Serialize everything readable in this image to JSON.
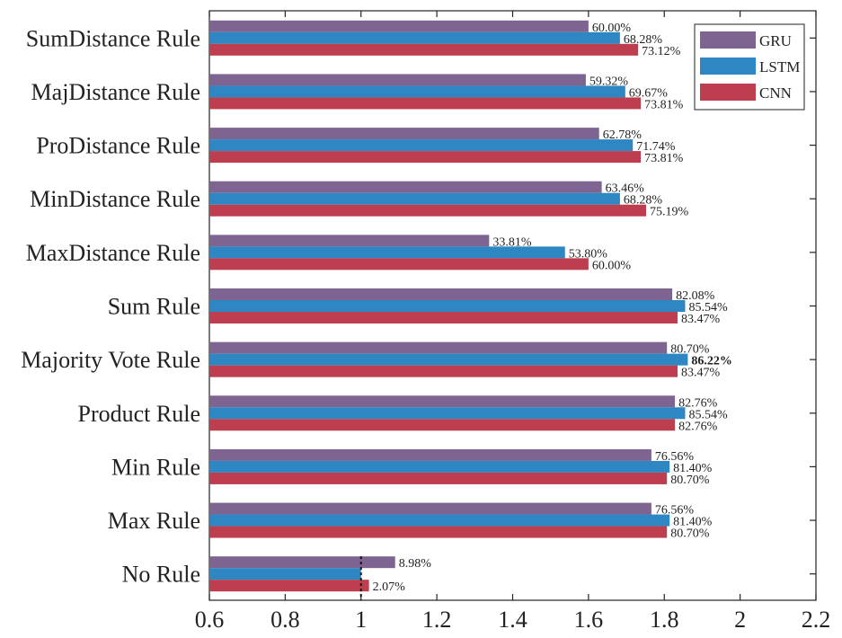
{
  "chart_data": {
    "type": "bar",
    "orientation": "horizontal",
    "title": "",
    "xlabel": "",
    "ylabel": "",
    "xlim": [
      0.6,
      2.2
    ],
    "xticks": [
      0.6,
      0.8,
      1,
      1.2,
      1.4,
      1.6,
      1.8,
      2,
      2.2
    ],
    "xtick_labels": [
      "0.6",
      "0.8",
      "1",
      "1.2",
      "1.4",
      "1.6",
      "1.8",
      "2",
      "2.2"
    ],
    "grid": false,
    "legend_position": "top-right",
    "reference_line": 1,
    "categories": [
      "SumDistance Rule",
      "MajDistance Rule",
      "ProDistance Rule",
      "MinDistance Rule",
      "MaxDistance Rule",
      "Sum Rule",
      "Majority Vote Rule",
      "Product Rule",
      "Min Rule",
      "Max Rule",
      "No Rule"
    ],
    "series": [
      {
        "name": "GRU",
        "color": "#7e6491",
        "values": [
          1.6,
          1.593,
          1.628,
          1.635,
          1.338,
          1.821,
          1.807,
          1.828,
          1.766,
          1.766,
          1.09
        ],
        "labels": [
          "60.00%",
          "59.32%",
          "62.78%",
          "63.46%",
          "33.81%",
          "82.08%",
          "80.70%",
          "82.76%",
          "76.56%",
          "76.56%",
          "8.98%"
        ]
      },
      {
        "name": "LSTM",
        "color": "#2e87c3",
        "values": [
          1.683,
          1.697,
          1.717,
          1.683,
          1.538,
          1.855,
          1.862,
          1.855,
          1.814,
          1.814,
          1.0
        ],
        "labels": [
          "68.28%",
          "69.67%",
          "71.74%",
          "68.28%",
          "53.80%",
          "85.54%",
          "86.22%",
          "85.54%",
          "81.40%",
          "81.40%",
          ""
        ]
      },
      {
        "name": "CNN",
        "color": "#bd3e4f",
        "values": [
          1.731,
          1.738,
          1.738,
          1.752,
          1.6,
          1.835,
          1.835,
          1.828,
          1.807,
          1.807,
          1.021
        ],
        "labels": [
          "73.12%",
          "73.81%",
          "73.81%",
          "75.19%",
          "60.00%",
          "83.47%",
          "83.47%",
          "82.76%",
          "80.70%",
          "80.70%",
          "2.07%"
        ]
      }
    ],
    "bold_labels": [
      {
        "series": 1,
        "index": 6
      }
    ]
  }
}
